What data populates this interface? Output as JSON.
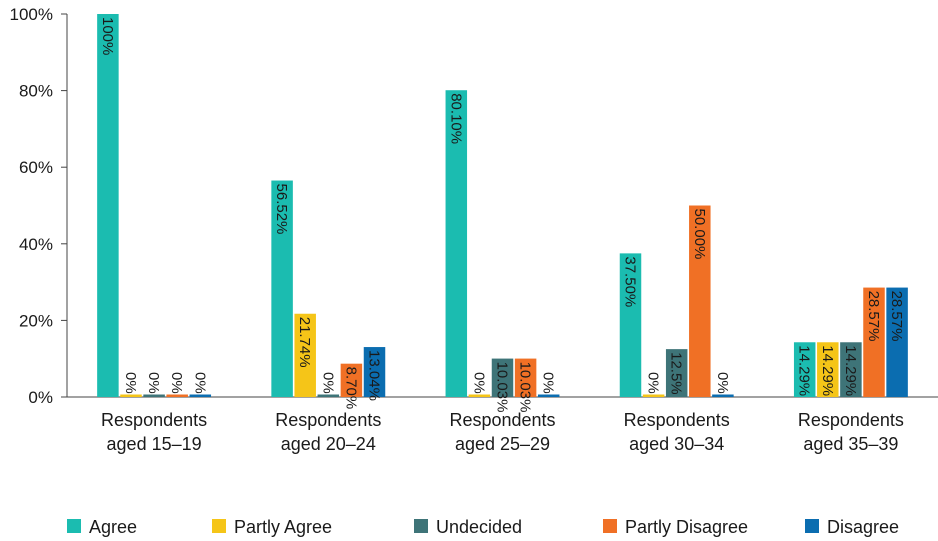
{
  "chart_data": {
    "type": "bar",
    "categories": [
      [
        "Respondents",
        "aged 15–19"
      ],
      [
        "Respondents",
        "aged 20–24"
      ],
      [
        "Respondents",
        "aged 25–29"
      ],
      [
        "Respondents",
        "aged 30–34"
      ],
      [
        "Respondents",
        "aged 35–39"
      ]
    ],
    "series": [
      {
        "name": "Agree",
        "color": "#1bbcb0",
        "values": [
          100,
          56.52,
          80.1,
          37.5,
          14.29
        ],
        "labels": [
          "100%",
          "56.52%",
          "80.10%",
          "37.50%",
          "14.29%"
        ]
      },
      {
        "name": "Partly Agree",
        "color": "#f5c518",
        "values": [
          0,
          21.74,
          0,
          0,
          14.29
        ],
        "labels": [
          "0%",
          "21.74%",
          "0%",
          "0%",
          "14.29%"
        ]
      },
      {
        "name": "Undecided",
        "color": "#3e7478",
        "values": [
          0,
          0,
          10.03,
          12.5,
          14.29
        ],
        "labels": [
          "0%",
          "0%",
          "10.03%",
          "12.5%",
          "14.29%"
        ]
      },
      {
        "name": "Partly Disagree",
        "color": "#f07025",
        "values": [
          0,
          8.7,
          10.03,
          50.0,
          28.57
        ],
        "labels": [
          "0%",
          "8.70%",
          "10.03%",
          "50.00%",
          "28.57%"
        ]
      },
      {
        "name": "Disagree",
        "color": "#0b6db0",
        "values": [
          0,
          13.04,
          0,
          0,
          28.57
        ],
        "labels": [
          "0%",
          "13.04%",
          "0%",
          "0%",
          "28.57%"
        ]
      }
    ],
    "yticks": [
      "0%",
      "20%",
      "40%",
      "60%",
      "80%",
      "100%"
    ],
    "ylim": [
      0,
      100
    ],
    "title": "",
    "xlabel": "",
    "ylabel": "",
    "grid": false,
    "legend_position": "bottom"
  }
}
